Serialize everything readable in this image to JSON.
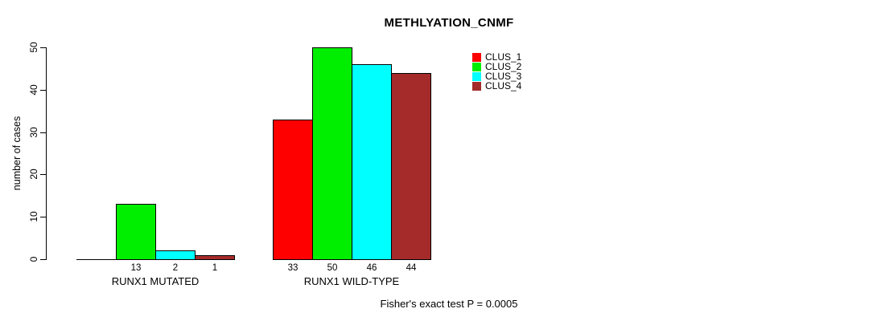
{
  "chart_data": {
    "type": "bar",
    "title": "METHLYATION_CNMF",
    "ylabel": "number of cases",
    "xlabel": "",
    "ylim": [
      0,
      50
    ],
    "yticks": [
      0,
      10,
      20,
      30,
      40,
      50
    ],
    "grid": false,
    "legend_position": "inside-top-right",
    "annotation": "Fisher's exact test P = 0.0005",
    "series": [
      {
        "name": "CLUS_1",
        "color": "#ff0000"
      },
      {
        "name": "CLUS_2",
        "color": "#00ee00"
      },
      {
        "name": "CLUS_3",
        "color": "#00ffff"
      },
      {
        "name": "CLUS_4",
        "color": "#a52a2a"
      }
    ],
    "groups": [
      {
        "label": "RUNX1 MUTATED",
        "values": [
          0,
          13,
          2,
          1
        ],
        "bar_labels": [
          "",
          "13",
          "2",
          "1"
        ]
      },
      {
        "label": "RUNX1 WILD-TYPE",
        "values": [
          33,
          50,
          46,
          44
        ],
        "bar_labels": [
          "33",
          "50",
          "46",
          "44"
        ]
      }
    ]
  }
}
